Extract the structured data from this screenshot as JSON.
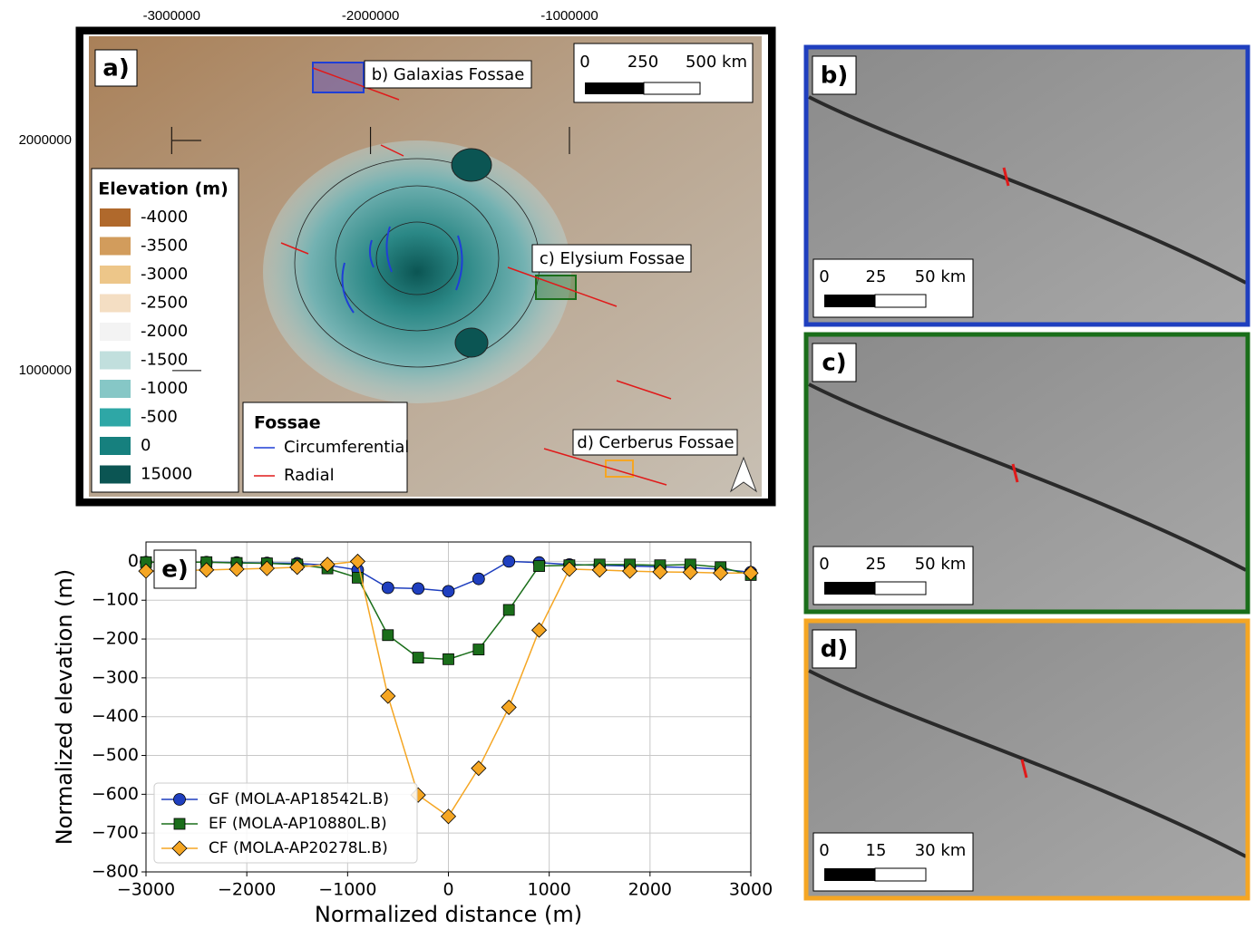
{
  "map": {
    "panel_label": "a)",
    "xticks": [
      -3000000,
      -2000000,
      -1000000
    ],
    "yticks": [
      2000000,
      1000000
    ],
    "xlim": [
      -3480000,
      35000
    ],
    "ylim": [
      413000,
      2492000
    ],
    "scale_bar": [
      "0",
      "250",
      "500 km"
    ],
    "annotations": [
      "b) Galaxias Fossae",
      "c) Elysium Fossae",
      "d) Cerberus Fossae"
    ],
    "elevation_legend": {
      "title": "Elevation (m)",
      "items": [
        {
          "value": -4000,
          "color": "#b0692c"
        },
        {
          "value": -3500,
          "color": "#d29c5c"
        },
        {
          "value": -3000,
          "color": "#edc689"
        },
        {
          "value": -2500,
          "color": "#f4dec3"
        },
        {
          "value": -2000,
          "color": "#f3f3f3"
        },
        {
          "value": -1500,
          "color": "#c1dfdd"
        },
        {
          "value": -1000,
          "color": "#86c7c6"
        },
        {
          "value": -500,
          "color": "#2ea7a6"
        },
        {
          "value": 0,
          "color": "#16807e"
        },
        {
          "value": 15000,
          "color": "#0b5553"
        }
      ]
    },
    "fossae_legend": {
      "title": "Fossae",
      "items": [
        {
          "name": "Circumferential",
          "color": "#1f3fd6"
        },
        {
          "name": "Radial",
          "color": "#e01a1a"
        }
      ]
    }
  },
  "panels": [
    {
      "label": "b)",
      "scale_bar": [
        "0",
        "25",
        "50 km"
      ],
      "color": "#1f3fbf"
    },
    {
      "label": "c)",
      "scale_bar": [
        "0",
        "25",
        "50 km"
      ],
      "color": "#1a6e1a"
    },
    {
      "label": "d)",
      "scale_bar": [
        "0",
        "15",
        "30 km"
      ],
      "color": "#f5a623"
    }
  ],
  "chart_data": {
    "type": "line",
    "panel_label": "e)",
    "x_label": "Normalized distance (m)",
    "y_label": "Normalized elevation (m)",
    "x": [
      -3000,
      -2400,
      -2100,
      -1800,
      -1500,
      -1200,
      -900,
      -600,
      -300,
      0,
      300,
      600,
      900,
      1200,
      1500,
      1800,
      2100,
      2400,
      2700,
      3000
    ],
    "series": [
      {
        "name": "GF (MOLA-AP18542L.B)",
        "color": "#1f3fbf",
        "marker": "circle",
        "values": [
          -2,
          -2,
          -3,
          -4,
          -5,
          -10,
          -22,
          -68,
          -70,
          -77,
          -45,
          0,
          -3,
          -8,
          -10,
          -12,
          -14,
          -16,
          -20,
          -28
        ]
      },
      {
        "name": "EF (MOLA-AP10880L.B)",
        "color": "#1a6e1a",
        "marker": "square",
        "values": [
          -2,
          -2,
          -4,
          -5,
          -8,
          -18,
          -42,
          -190,
          -248,
          -252,
          -227,
          -125,
          -12,
          -10,
          -8,
          -8,
          -10,
          -8,
          -15,
          -35
        ]
      },
      {
        "name": "CF (MOLA-AP20278L.B)",
        "color": "#f5a623",
        "marker": "diamond",
        "values": [
          -25,
          -22,
          -20,
          -18,
          -15,
          -8,
          0,
          -347,
          -602,
          -657,
          -533,
          -376,
          -177,
          -20,
          -22,
          -25,
          -27,
          -28,
          -30,
          -30
        ]
      }
    ],
    "xlim": [
      -3000,
      3000
    ],
    "ylim": [
      -800,
      50
    ],
    "xticks": [
      {
        "value": -3000,
        "label": "−3000"
      },
      {
        "value": -2000,
        "label": "−2000"
      },
      {
        "value": -1000,
        "label": "−1000"
      },
      0,
      1000,
      2000,
      3000
    ],
    "yticks": [
      0,
      {
        "value": -100,
        "label": "−100"
      },
      {
        "value": -200,
        "label": "−200"
      },
      {
        "value": -300,
        "label": "−300"
      },
      {
        "value": -400,
        "label": "−400"
      },
      {
        "value": -500,
        "label": "−500"
      },
      {
        "value": -600,
        "label": "−600"
      },
      {
        "value": -700,
        "label": "−700"
      },
      {
        "value": -800,
        "label": "−800"
      }
    ],
    "grid": true,
    "legend": "lower left"
  }
}
